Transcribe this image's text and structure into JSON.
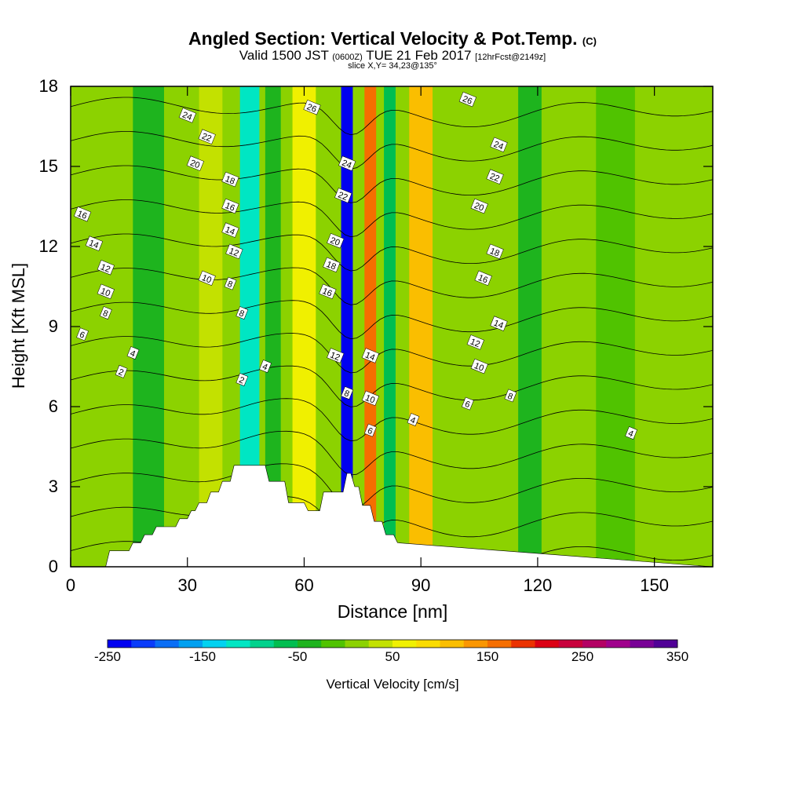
{
  "header": {
    "title_main": "Angled Section: Vertical Velocity & Pot.Temp.",
    "title_unit": "(C)",
    "valid_prefix": "Valid 1500 JST",
    "valid_utc": "(0600Z)",
    "valid_date": "TUE 21 Feb 2017",
    "valid_fcst": "[12hrFcst@2149z]",
    "slice": "slice X,Y= 34,23@135°"
  },
  "chart_data": {
    "type": "heatmap",
    "xlabel": "Distance [nm]",
    "ylabel": "Height [Kft MSL]",
    "xlim": [
      0,
      165
    ],
    "ylim": [
      0,
      18
    ],
    "x_ticks": [
      0,
      30,
      60,
      90,
      120,
      150
    ],
    "y_ticks": [
      0,
      3,
      6,
      9,
      12,
      15,
      18
    ],
    "field": "Vertical Velocity [cm/s]",
    "colorbar": {
      "label": "Vertical Velocity [cm/s]",
      "min": -250,
      "max": 350,
      "step": 25,
      "tick_labels": [
        -250,
        -150,
        -50,
        50,
        150,
        250,
        350
      ],
      "colors": [
        "#0000f0",
        "#0a3cfa",
        "#0a6ef5",
        "#00a0f0",
        "#00d2f0",
        "#00e6c3",
        "#00d28c",
        "#00be50",
        "#1eb41e",
        "#50c300",
        "#8cd200",
        "#c3e100",
        "#f0f000",
        "#fadc00",
        "#fabe00",
        "#fa9600",
        "#f56e00",
        "#eb3200",
        "#dc0014",
        "#c8003c",
        "#b40064",
        "#a0008c",
        "#780096",
        "#500096"
      ]
    },
    "velocity_bands": [
      {
        "x_center": 8,
        "x_width": 6,
        "value": 20
      },
      {
        "x_center": 20,
        "x_width": 8,
        "value": -40
      },
      {
        "x_center": 36,
        "x_width": 6,
        "value": 30
      },
      {
        "x_center": 46,
        "x_width": 5,
        "value": -110
      },
      {
        "x_center": 52,
        "x_width": 4,
        "value": -30
      },
      {
        "x_center": 60,
        "x_width": 6,
        "value": 50
      },
      {
        "x_center": 71,
        "x_width": 3,
        "value": -230
      },
      {
        "x_center": 77,
        "x_width": 3,
        "value": 170
      },
      {
        "x_center": 82,
        "x_width": 3,
        "value": -60
      },
      {
        "x_center": 90,
        "x_width": 6,
        "value": 110
      },
      {
        "x_center": 102,
        "x_width": 8,
        "value": 20
      },
      {
        "x_center": 118,
        "x_width": 6,
        "value": -45
      },
      {
        "x_center": 140,
        "x_width": 10,
        "value": -20
      },
      {
        "x_center": 155,
        "x_width": 6,
        "value": 15
      }
    ],
    "terrain": {
      "x": [
        0,
        9,
        10,
        15,
        16,
        18,
        19,
        21,
        22,
        27,
        28,
        30,
        31,
        32,
        33,
        35,
        36,
        38,
        39,
        41,
        42,
        50,
        51,
        55,
        56,
        60,
        61,
        64,
        65,
        70,
        71,
        72,
        73,
        74,
        75,
        77,
        78,
        80,
        81,
        83,
        84,
        165
      ],
      "height": [
        0,
        0,
        0.6,
        0.6,
        0.9,
        0.9,
        1.2,
        1.2,
        1.5,
        1.5,
        1.8,
        1.8,
        2.1,
        2.1,
        2.4,
        2.4,
        2.8,
        2.8,
        3.2,
        3.2,
        3.8,
        3.8,
        3.2,
        3.2,
        2.4,
        2.4,
        2.1,
        2.1,
        2.8,
        2.8,
        3.5,
        3.5,
        3.0,
        3.0,
        2.3,
        2.3,
        1.7,
        1.7,
        1.2,
        1.2,
        0.9,
        0
      ]
    },
    "theta_contours": {
      "units": "C",
      "levels": [
        0,
        2,
        4,
        6,
        8,
        10,
        12,
        14,
        16,
        18,
        20,
        22,
        24,
        26
      ],
      "labels": [
        {
          "text": "2",
          "x": 13,
          "y": 7.3
        },
        {
          "text": "4",
          "x": 16,
          "y": 8.0
        },
        {
          "text": "6",
          "x": 3,
          "y": 8.7
        },
        {
          "text": "8",
          "x": 9,
          "y": 9.5
        },
        {
          "text": "10",
          "x": 9,
          "y": 10.3
        },
        {
          "text": "12",
          "x": 9,
          "y": 11.2
        },
        {
          "text": "14",
          "x": 6,
          "y": 12.1
        },
        {
          "text": "16",
          "x": 3,
          "y": 13.2
        },
        {
          "text": "2",
          "x": 44,
          "y": 7.0
        },
        {
          "text": "4",
          "x": 50,
          "y": 7.5
        },
        {
          "text": "8",
          "x": 44,
          "y": 9.5
        },
        {
          "text": "8",
          "x": 41,
          "y": 10.6
        },
        {
          "text": "10",
          "x": 35,
          "y": 10.8
        },
        {
          "text": "12",
          "x": 42,
          "y": 11.8
        },
        {
          "text": "14",
          "x": 41,
          "y": 12.6
        },
        {
          "text": "16",
          "x": 41,
          "y": 13.5
        },
        {
          "text": "18",
          "x": 41,
          "y": 14.5
        },
        {
          "text": "20",
          "x": 32,
          "y": 15.1
        },
        {
          "text": "22",
          "x": 35,
          "y": 16.1
        },
        {
          "text": "24",
          "x": 30,
          "y": 16.9
        },
        {
          "text": "26",
          "x": 62,
          "y": 17.2
        },
        {
          "text": "24",
          "x": 71,
          "y": 15.1
        },
        {
          "text": "22",
          "x": 70,
          "y": 13.9
        },
        {
          "text": "20",
          "x": 68,
          "y": 12.2
        },
        {
          "text": "18",
          "x": 67,
          "y": 11.3
        },
        {
          "text": "16",
          "x": 66,
          "y": 10.3
        },
        {
          "text": "12",
          "x": 68,
          "y": 7.9
        },
        {
          "text": "14",
          "x": 77,
          "y": 7.9
        },
        {
          "text": "8",
          "x": 71,
          "y": 6.5
        },
        {
          "text": "10",
          "x": 77,
          "y": 6.3
        },
        {
          "text": "6",
          "x": 77,
          "y": 5.1
        },
        {
          "text": "4",
          "x": 88,
          "y": 5.5
        },
        {
          "text": "26",
          "x": 102,
          "y": 17.5
        },
        {
          "text": "24",
          "x": 110,
          "y": 15.8
        },
        {
          "text": "22",
          "x": 109,
          "y": 14.6
        },
        {
          "text": "20",
          "x": 105,
          "y": 13.5
        },
        {
          "text": "18",
          "x": 109,
          "y": 11.8
        },
        {
          "text": "16",
          "x": 106,
          "y": 10.8
        },
        {
          "text": "14",
          "x": 110,
          "y": 9.1
        },
        {
          "text": "12",
          "x": 104,
          "y": 8.4
        },
        {
          "text": "10",
          "x": 105,
          "y": 7.5
        },
        {
          "text": "8",
          "x": 113,
          "y": 6.4
        },
        {
          "text": "6",
          "x": 102,
          "y": 6.1
        },
        {
          "text": "4",
          "x": 144,
          "y": 5.0
        }
      ]
    },
    "grid": false,
    "legend": "bottom"
  }
}
